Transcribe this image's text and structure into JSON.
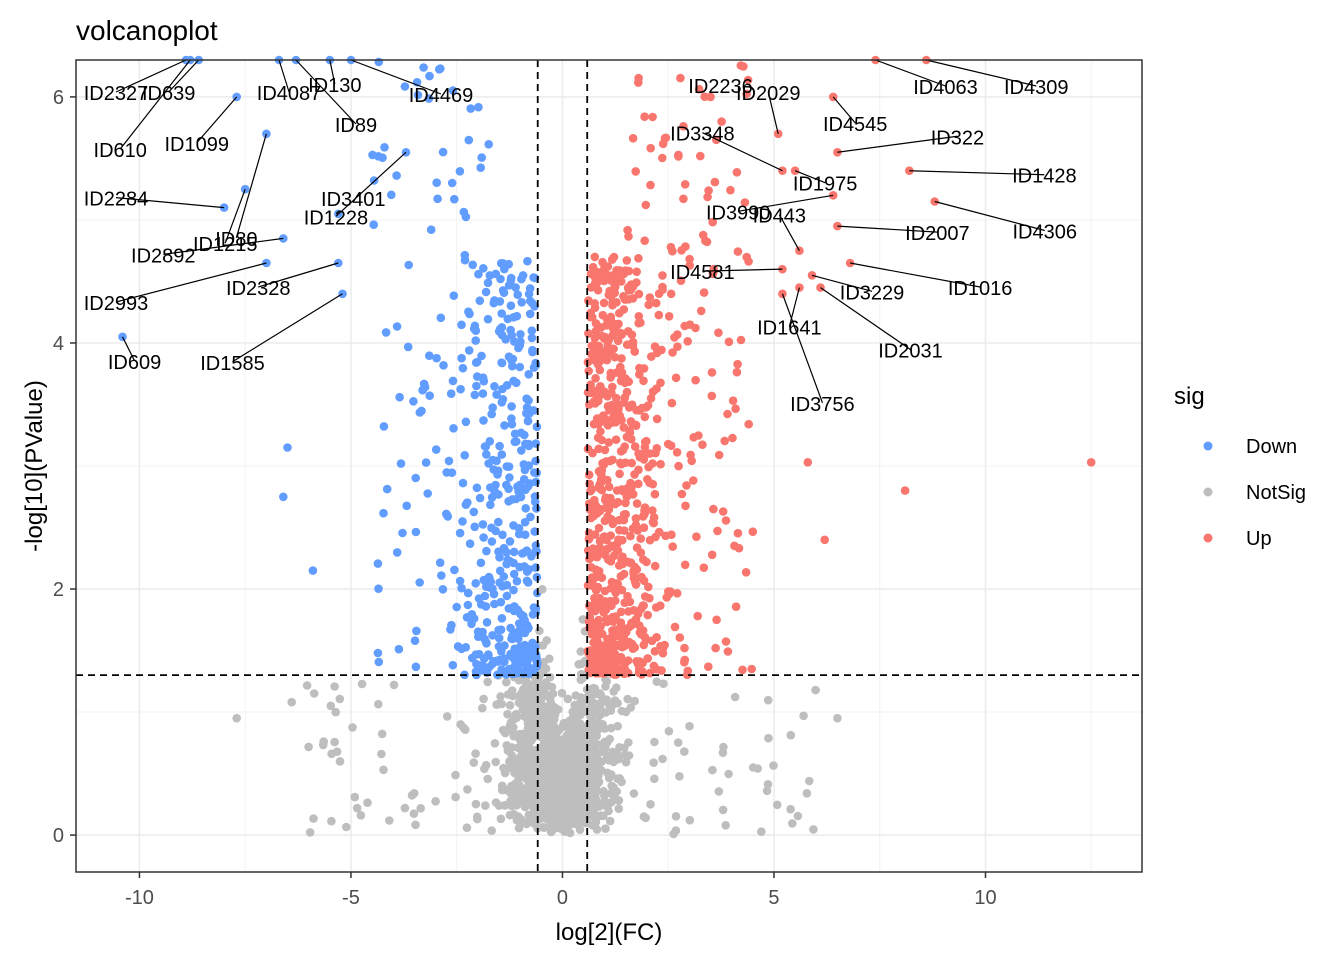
{
  "chart_data": {
    "type": "scatter",
    "title": "volcanoplot",
    "xlabel": "log[2](FC)",
    "ylabel": "-log[10](PValue)",
    "xlim": [
      -11.5,
      13.7
    ],
    "ylim": [
      -0.3,
      6.3
    ],
    "x_ticks": [
      -10,
      -5,
      0,
      5,
      10
    ],
    "y_ticks": [
      0,
      2,
      4,
      6
    ],
    "grid": true,
    "thresholds": {
      "log2fc": 0.585,
      "neg_log10_p": 1.3
    },
    "legend": {
      "title": "sig",
      "position": "right",
      "entries": [
        {
          "label": "Down",
          "color": "#619CFF"
        },
        {
          "label": "NotSig",
          "color": "#BEBEBE"
        },
        {
          "label": "Up",
          "color": "#F8766D"
        }
      ]
    },
    "labeled_points": [
      {
        "id": "ID2327",
        "x": -8.9,
        "y": 6.3,
        "group": "Down"
      },
      {
        "id": "ID639",
        "x": -8.6,
        "y": 6.3,
        "group": "Down"
      },
      {
        "id": "ID4087",
        "x": -6.7,
        "y": 6.3,
        "group": "Down"
      },
      {
        "id": "ID130",
        "x": -5.5,
        "y": 6.3,
        "group": "Down"
      },
      {
        "id": "ID4469",
        "x": -5.0,
        "y": 6.3,
        "group": "Down"
      },
      {
        "id": "ID610",
        "x": -8.8,
        "y": 6.3,
        "group": "Down"
      },
      {
        "id": "ID1099",
        "x": -7.7,
        "y": 6.0,
        "group": "Down"
      },
      {
        "id": "ID89",
        "x": -6.3,
        "y": 6.3,
        "group": "Down"
      },
      {
        "id": "ID80",
        "x": -7.0,
        "y": 5.7,
        "group": "Down"
      },
      {
        "id": "ID1228",
        "x": -3.7,
        "y": 5.55,
        "group": "Down"
      },
      {
        "id": "ID2284",
        "x": -8.0,
        "y": 5.1,
        "group": "Down"
      },
      {
        "id": "ID1215",
        "x": -7.5,
        "y": 5.25,
        "group": "Down"
      },
      {
        "id": "ID3401",
        "x": -5.3,
        "y": 5.05,
        "group": "Down"
      },
      {
        "id": "ID2892",
        "x": -6.6,
        "y": 4.85,
        "group": "Down"
      },
      {
        "id": "ID2993",
        "x": -7.0,
        "y": 4.65,
        "group": "Down"
      },
      {
        "id": "ID2328",
        "x": -5.3,
        "y": 4.65,
        "group": "Down"
      },
      {
        "id": "ID1585",
        "x": -5.2,
        "y": 4.4,
        "group": "Down"
      },
      {
        "id": "ID609",
        "x": -10.4,
        "y": 4.05,
        "group": "Down"
      },
      {
        "id": "ID4063",
        "x": 7.4,
        "y": 6.3,
        "group": "Up"
      },
      {
        "id": "ID4309",
        "x": 8.6,
        "y": 6.3,
        "group": "Up"
      },
      {
        "id": "ID2236",
        "x": 3.5,
        "y": 6.0,
        "group": "Up"
      },
      {
        "id": "ID4545",
        "x": 6.4,
        "y": 6.0,
        "group": "Up"
      },
      {
        "id": "ID3348",
        "x": 5.2,
        "y": 5.4,
        "group": "Up"
      },
      {
        "id": "ID2029",
        "x": 5.1,
        "y": 5.7,
        "group": "Up"
      },
      {
        "id": "ID322",
        "x": 6.5,
        "y": 5.55,
        "group": "Up"
      },
      {
        "id": "ID1975",
        "x": 5.5,
        "y": 5.4,
        "group": "Up"
      },
      {
        "id": "ID1428",
        "x": 8.2,
        "y": 5.4,
        "group": "Up"
      },
      {
        "id": "ID3990",
        "x": 6.4,
        "y": 5.2,
        "group": "Up"
      },
      {
        "id": "ID4306",
        "x": 8.8,
        "y": 5.15,
        "group": "Up"
      },
      {
        "id": "ID2007",
        "x": 6.5,
        "y": 4.95,
        "group": "Up"
      },
      {
        "id": "ID443",
        "x": 5.6,
        "y": 4.75,
        "group": "Up"
      },
      {
        "id": "ID1016",
        "x": 6.8,
        "y": 4.65,
        "group": "Up"
      },
      {
        "id": "ID4581",
        "x": 5.2,
        "y": 4.6,
        "group": "Up"
      },
      {
        "id": "ID3229",
        "x": 5.9,
        "y": 4.55,
        "group": "Up"
      },
      {
        "id": "ID1641",
        "x": 5.6,
        "y": 4.45,
        "group": "Up"
      },
      {
        "id": "ID2031",
        "x": 6.1,
        "y": 4.45,
        "group": "Up"
      },
      {
        "id": "ID3756",
        "x": 5.2,
        "y": 4.4,
        "group": "Up"
      }
    ],
    "notable_points": [
      {
        "x": 12.5,
        "y": 3.03,
        "group": "Up"
      },
      {
        "x": 8.1,
        "y": 2.8,
        "group": "Up"
      },
      {
        "x": 5.8,
        "y": 3.03,
        "group": "Up"
      },
      {
        "x": 6.2,
        "y": 2.4,
        "group": "Up"
      },
      {
        "x": -6.5,
        "y": 3.15,
        "group": "Down"
      },
      {
        "x": -6.6,
        "y": 2.75,
        "group": "Down"
      },
      {
        "x": -5.9,
        "y": 2.15,
        "group": "Down"
      },
      {
        "x": -7.7,
        "y": 0.95,
        "group": "NotSig"
      },
      {
        "x": -6.4,
        "y": 1.08,
        "group": "NotSig"
      },
      {
        "x": 5.7,
        "y": 0.97,
        "group": "NotSig"
      },
      {
        "x": 6.5,
        "y": 0.95,
        "group": "NotSig"
      }
    ]
  }
}
